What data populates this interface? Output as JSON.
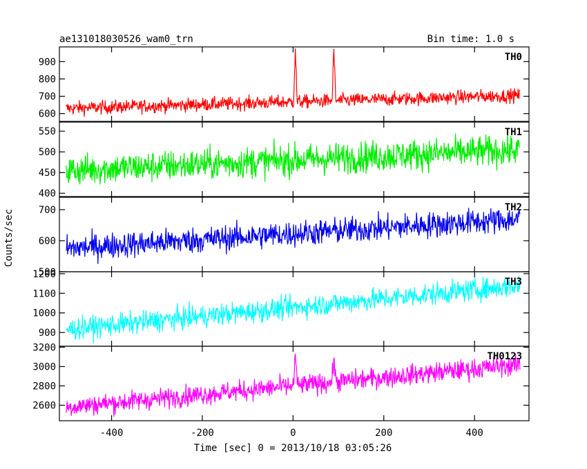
{
  "header": {
    "title": "ae131018030526_wam0_trn",
    "bin_time": "Bin time: 1.0 s"
  },
  "axes": {
    "ylabel": "Counts/sec",
    "xlabel": "Time [sec] 0 = 2013/10/18 03:05:26"
  },
  "chart_data": {
    "type": "line",
    "title": "ae131018030526_wam0_trn",
    "xlabel": "Time [sec] 0 = 2013/10/18 03:05:26",
    "ylabel": "Counts/sec",
    "xlim": [
      -515,
      520
    ],
    "xticks": [
      -400,
      -200,
      0,
      200,
      400
    ],
    "xtick_labels": [
      "-400",
      "-200",
      "0",
      "200",
      "400"
    ],
    "panels": [
      {
        "name": "TH0",
        "color": "#ff0000",
        "ylim": [
          555,
          985
        ],
        "yticks": [
          600,
          700,
          800,
          900
        ],
        "x_range": [
          -500,
          500
        ],
        "trend_start": 630,
        "trend_end": 705,
        "noise": 28,
        "spikes": [
          {
            "t": 5,
            "peak": 975,
            "width": 4
          },
          {
            "t": 90,
            "peak": 975,
            "width": 4
          }
        ]
      },
      {
        "name": "TH1",
        "color": "#00ee00",
        "ylim": [
          392,
          572
        ],
        "yticks": [
          400,
          450,
          500,
          550
        ],
        "x_range": [
          -500,
          500
        ],
        "trend_start": 455,
        "trend_end": 505,
        "noise": 27,
        "spikes": []
      },
      {
        "name": "TH2",
        "color": "#0000ee",
        "ylim": [
          500,
          740
        ],
        "yticks": [
          500,
          600,
          700
        ],
        "x_range": [
          -500,
          500
        ],
        "trend_start": 575,
        "trend_end": 670,
        "noise": 30,
        "spikes": []
      },
      {
        "name": "TH3",
        "color": "#00ffff",
        "ylim": [
          830,
          1210
        ],
        "yticks": [
          900,
          1000,
          1100,
          1200
        ],
        "x_range": [
          -500,
          500
        ],
        "trend_start": 915,
        "trend_end": 1140,
        "noise": 40,
        "spikes": []
      },
      {
        "name": "TH0123",
        "color": "#ff00ff",
        "ylim": [
          2440,
          3210
        ],
        "yticks": [
          2600,
          2800,
          3000,
          3200
        ],
        "x_range": [
          -500,
          500
        ],
        "trend_start": 2580,
        "trend_end": 3020,
        "noise": 75,
        "spikes": [
          {
            "t": 5,
            "peak": 3150,
            "width": 4
          },
          {
            "t": 90,
            "peak": 3120,
            "width": 4
          }
        ]
      }
    ]
  }
}
